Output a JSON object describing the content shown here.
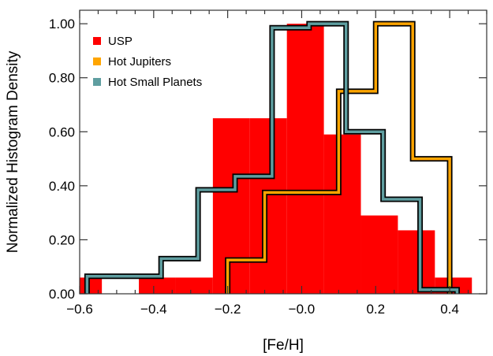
{
  "chart_data": {
    "type": "histogram",
    "xlabel": "[Fe/H]",
    "ylabel": "Normalized Histogram Density",
    "xlim": [
      -0.6,
      0.5
    ],
    "ylim": [
      0,
      1.05
    ],
    "xticks": [
      -0.6,
      -0.4,
      -0.2,
      0.0,
      0.2,
      0.4
    ],
    "xtick_labels": [
      "−0.6",
      "−0.4",
      "−0.2",
      "−0.0",
      "0.2",
      "0.4"
    ],
    "yticks": [
      0,
      0.2,
      0.4,
      0.6,
      0.8,
      1.0
    ],
    "ytick_labels": [
      "0.00",
      "0.20",
      "0.40",
      "0.60",
      "0.80",
      "1.00"
    ],
    "legend_position": "top-left",
    "series": [
      {
        "name": "USP",
        "style": "filled",
        "color": "#ff0000",
        "bin_edges": [
          -0.64,
          -0.54,
          -0.44,
          -0.34,
          -0.24,
          -0.14,
          -0.04,
          0.06,
          0.16,
          0.26,
          0.36,
          0.46
        ],
        "values": [
          0.06,
          0.0,
          0.06,
          0.06,
          0.65,
          0.65,
          1.0,
          0.59,
          0.29,
          0.235,
          0.06
        ]
      },
      {
        "name": "Hot Jupiters",
        "style": "step",
        "color": "#ffa500",
        "bin_edges": [
          -0.2,
          -0.1,
          0.0,
          0.1,
          0.2,
          0.3,
          0.4
        ],
        "values": [
          0.125,
          0.375,
          0.375,
          0.75,
          1.0,
          0.5
        ]
      },
      {
        "name": "Hot Small Planets",
        "style": "step",
        "color": "#5f9ea0",
        "bin_edges": [
          -0.58,
          -0.48,
          -0.38,
          -0.28,
          -0.18,
          -0.08,
          0.02,
          0.12,
          0.22,
          0.32,
          0.42
        ],
        "values": [
          0.065,
          0.065,
          0.13,
          0.385,
          0.435,
          0.985,
          1.0,
          0.6,
          0.35,
          0.015
        ]
      }
    ]
  }
}
